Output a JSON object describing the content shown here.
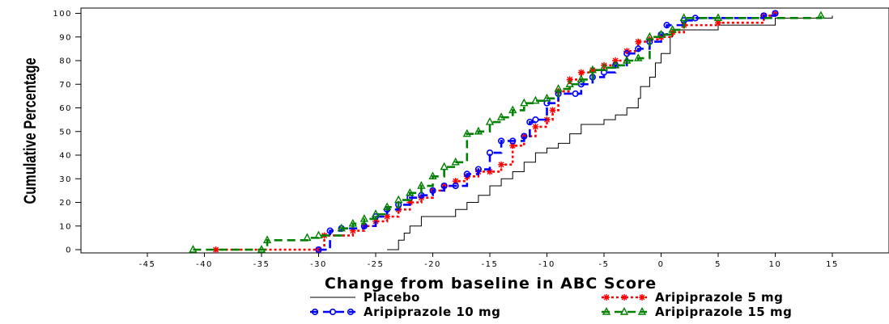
{
  "chart_data": {
    "type": "line",
    "step": true,
    "xlabel": "Change from baseline in ABC Score",
    "ylabel": "Cumulative Percentage",
    "xlim": [
      -50,
      20
    ],
    "ylim": [
      0,
      100
    ],
    "xticks": [
      -45,
      -40,
      -35,
      -30,
      -25,
      -20,
      -15,
      -10,
      -5,
      0,
      5,
      10,
      15
    ],
    "yticks": [
      0,
      10,
      20,
      30,
      40,
      50,
      60,
      70,
      80,
      90,
      100
    ],
    "legend_position": "bottom",
    "series": [
      {
        "name": "Placebo",
        "color": "#000000",
        "style": "solid",
        "marker": "none",
        "points": [
          [
            -24,
            0
          ],
          [
            -23,
            4
          ],
          [
            -22.5,
            7
          ],
          [
            -22,
            10
          ],
          [
            -21,
            14
          ],
          [
            -19,
            14
          ],
          [
            -18,
            17
          ],
          [
            -17,
            20
          ],
          [
            -16,
            23
          ],
          [
            -15,
            27
          ],
          [
            -14,
            30
          ],
          [
            -13,
            33
          ],
          [
            -12,
            37
          ],
          [
            -11,
            41
          ],
          [
            -10,
            43
          ],
          [
            -9,
            45
          ],
          [
            -8,
            49
          ],
          [
            -7,
            53
          ],
          [
            -5,
            55
          ],
          [
            -4,
            57
          ],
          [
            -3,
            60
          ],
          [
            -2,
            64
          ],
          [
            -1.8,
            69
          ],
          [
            -1,
            73
          ],
          [
            -0.5,
            79
          ],
          [
            0,
            83
          ],
          [
            0.8,
            90
          ],
          [
            1,
            93
          ],
          [
            5,
            95
          ],
          [
            10,
            98
          ],
          [
            15,
            99
          ]
        ]
      },
      {
        "name": "Aripiprazole 5 mg",
        "color": "#ff0000",
        "style": "dotted",
        "marker": "star",
        "points": [
          [
            -39,
            0
          ],
          [
            -30,
            0
          ],
          [
            -29.5,
            6
          ],
          [
            -27,
            8
          ],
          [
            -26,
            10
          ],
          [
            -25,
            12
          ],
          [
            -24,
            14
          ],
          [
            -23,
            17
          ],
          [
            -22,
            20
          ],
          [
            -21,
            22
          ],
          [
            -20,
            25
          ],
          [
            -19,
            27
          ],
          [
            -18,
            29
          ],
          [
            -17,
            31
          ],
          [
            -16,
            33
          ],
          [
            -15,
            33
          ],
          [
            -14,
            36
          ],
          [
            -13,
            44
          ],
          [
            -12,
            48
          ],
          [
            -11,
            52
          ],
          [
            -10,
            55
          ],
          [
            -9.5,
            59
          ],
          [
            -9,
            67
          ],
          [
            -8,
            72
          ],
          [
            -7,
            75
          ],
          [
            -6,
            76
          ],
          [
            -5,
            78
          ],
          [
            -4,
            80
          ],
          [
            -3,
            84
          ],
          [
            -2,
            88
          ],
          [
            -1,
            89
          ],
          [
            0,
            90
          ],
          [
            1,
            92
          ],
          [
            2,
            95
          ],
          [
            5,
            96
          ],
          [
            9,
            99
          ],
          [
            10,
            100
          ]
        ]
      },
      {
        "name": "Aripiprazole 10 mg",
        "color": "#0000ff",
        "style": "dashed",
        "marker": "circle",
        "points": [
          [
            -30,
            0
          ],
          [
            -29,
            8
          ],
          [
            -28,
            9
          ],
          [
            -26,
            10
          ],
          [
            -25,
            14
          ],
          [
            -24,
            17
          ],
          [
            -23,
            19
          ],
          [
            -22,
            22
          ],
          [
            -21,
            23
          ],
          [
            -20,
            25
          ],
          [
            -19,
            27
          ],
          [
            -18,
            27
          ],
          [
            -17,
            32
          ],
          [
            -16,
            34
          ],
          [
            -15,
            41
          ],
          [
            -14,
            46
          ],
          [
            -13,
            46
          ],
          [
            -12,
            48
          ],
          [
            -11.5,
            54
          ],
          [
            -11,
            55
          ],
          [
            -10,
            62
          ],
          [
            -9,
            66
          ],
          [
            -7.5,
            66
          ],
          [
            -7,
            70
          ],
          [
            -6,
            73
          ],
          [
            -5,
            75
          ],
          [
            -4,
            78
          ],
          [
            -3,
            83
          ],
          [
            -2,
            85
          ],
          [
            -1,
            88
          ],
          [
            0,
            91
          ],
          [
            0.5,
            95
          ],
          [
            2,
            97
          ],
          [
            3,
            98
          ],
          [
            9,
            99
          ],
          [
            10,
            100
          ]
        ]
      },
      {
        "name": "Aripiprazole 15 mg",
        "color": "#008000",
        "style": "dashed",
        "marker": "triangle",
        "points": [
          [
            -41,
            0
          ],
          [
            -35,
            0
          ],
          [
            -34.5,
            4
          ],
          [
            -31,
            5
          ],
          [
            -30,
            6
          ],
          [
            -28,
            9
          ],
          [
            -27,
            11
          ],
          [
            -26,
            13
          ],
          [
            -25,
            15
          ],
          [
            -24,
            18
          ],
          [
            -23,
            21
          ],
          [
            -22,
            24
          ],
          [
            -21,
            27
          ],
          [
            -20,
            31
          ],
          [
            -19,
            35
          ],
          [
            -18,
            37
          ],
          [
            -17,
            49
          ],
          [
            -16,
            50
          ],
          [
            -15,
            54
          ],
          [
            -14,
            56
          ],
          [
            -13,
            59
          ],
          [
            -12,
            62
          ],
          [
            -11,
            63
          ],
          [
            -10,
            64
          ],
          [
            -9,
            68
          ],
          [
            -8,
            70
          ],
          [
            -7,
            72
          ],
          [
            -6,
            76
          ],
          [
            -5,
            77
          ],
          [
            -4,
            78
          ],
          [
            -3,
            80
          ],
          [
            -2,
            81
          ],
          [
            -1,
            90
          ],
          [
            0,
            91
          ],
          [
            1,
            93
          ],
          [
            2,
            98
          ],
          [
            5,
            98
          ],
          [
            14,
            99
          ]
        ]
      }
    ]
  }
}
